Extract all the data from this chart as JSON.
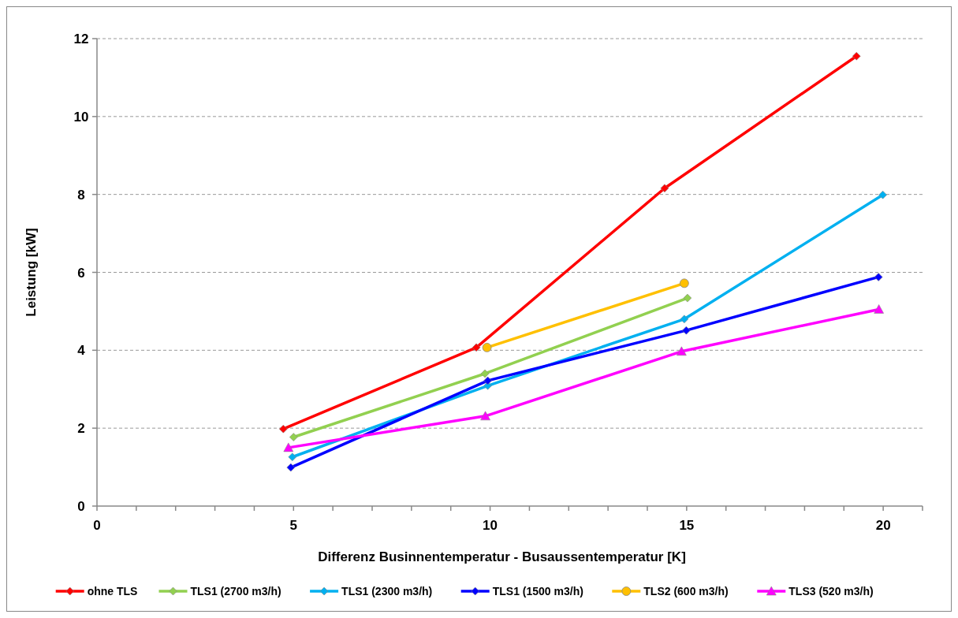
{
  "chart_data": {
    "type": "line",
    "xlabel": "Differenz Businnentemperatur - Busaussentemperatur [K]",
    "ylabel": "Leistung [kW]",
    "xlim": [
      0,
      21
    ],
    "xticks": [
      0,
      {
        "value": 1,
        "label": null
      },
      {
        "value": 2,
        "label": null
      },
      {
        "value": 3,
        "label": null
      },
      {
        "value": 4,
        "label": null
      },
      5,
      {
        "value": 6,
        "label": null
      },
      {
        "value": 7,
        "label": null
      },
      {
        "value": 8,
        "label": null
      },
      {
        "value": 9,
        "label": null
      },
      10,
      {
        "value": 11,
        "label": null
      },
      {
        "value": 12,
        "label": null
      },
      {
        "value": 13,
        "label": null
      },
      {
        "value": 14,
        "label": null
      },
      15,
      {
        "value": 16,
        "label": null
      },
      {
        "value": 17,
        "label": null
      },
      {
        "value": 18,
        "label": null
      },
      {
        "value": 19,
        "label": null
      },
      20,
      {
        "value": 21,
        "label": null
      }
    ],
    "ylim": [
      0,
      12
    ],
    "yticks": [
      0,
      2,
      4,
      6,
      8,
      10,
      12
    ],
    "grid": "y",
    "legend": "bottom",
    "line_style": "solid",
    "series": [
      {
        "name": "ohne TLS",
        "color": "#ff0000",
        "marker": "diamond",
        "x": [
          4.74,
          9.65,
          14.44,
          19.32
        ],
        "values": [
          1.98,
          4.07,
          8.16,
          11.55
        ]
      },
      {
        "name": "TLS1 (2700 m3/h)",
        "color": "#92d050",
        "marker": "diamond",
        "x": [
          5.0,
          9.87,
          15.02
        ],
        "values": [
          1.77,
          3.4,
          5.34
        ]
      },
      {
        "name": "TLS1 (2300 m3/h)",
        "color": "#00b0f0",
        "marker": "diamond",
        "x": [
          4.97,
          9.94,
          14.94,
          19.99
        ],
        "values": [
          1.26,
          3.09,
          4.8,
          7.99
        ]
      },
      {
        "name": "TLS1 (1500 m3/h)",
        "color": "#0000ff",
        "marker": "diamond",
        "x": [
          4.93,
          9.94,
          14.99,
          19.88
        ],
        "values": [
          0.99,
          3.22,
          4.51,
          5.88
        ]
      },
      {
        "name": "TLS2 (600 m3/h)",
        "color": "#ffc000",
        "marker": "circle",
        "x": [
          9.92,
          14.94
        ],
        "values": [
          4.07,
          5.72
        ]
      },
      {
        "name": "TLS3 (520 m3/h)",
        "color": "#ff00ff",
        "marker": "triangle",
        "x": [
          4.87,
          9.88,
          14.87,
          19.89
        ],
        "values": [
          1.5,
          2.31,
          3.97,
          5.05
        ]
      }
    ]
  }
}
